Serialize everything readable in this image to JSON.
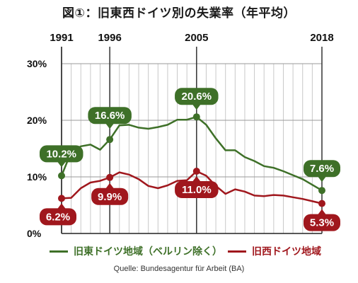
{
  "title": "図①：旧東西ドイツ別の失業率（年平均）",
  "source": "Quelle: Bundesagentur für Arbeit (BA)",
  "chart_data": {
    "type": "line",
    "x": [
      1991,
      1992,
      1993,
      1994,
      1995,
      1996,
      1997,
      1998,
      1999,
      2000,
      2001,
      2002,
      2003,
      2004,
      2005,
      2006,
      2007,
      2008,
      2009,
      2010,
      2011,
      2012,
      2013,
      2014,
      2015,
      2016,
      2017,
      2018
    ],
    "xticks": [
      "1991",
      "1996",
      "2005",
      "2018"
    ],
    "yticks": [
      "0%",
      "10%",
      "20%",
      "30%"
    ],
    "ylim": [
      0,
      30
    ],
    "grid": true,
    "legend_position": "bottom",
    "series": [
      {
        "name": "旧東ドイツ地域（ベルリン除く）",
        "color": "#3e7028",
        "values": [
          10.2,
          14.4,
          15.4,
          15.7,
          14.8,
          16.6,
          19.1,
          19.2,
          18.7,
          18.5,
          18.8,
          19.2,
          20.1,
          20.1,
          20.6,
          19.2,
          16.8,
          14.7,
          14.7,
          13.5,
          12.8,
          11.9,
          11.6,
          11.0,
          10.3,
          9.6,
          8.6,
          7.6
        ]
      },
      {
        "name": "旧西ドイツ地域",
        "color": "#a0171d",
        "values": [
          6.2,
          6.3,
          8.0,
          9.0,
          9.3,
          9.9,
          10.8,
          10.4,
          9.6,
          8.4,
          8.0,
          8.5,
          9.3,
          9.4,
          11.0,
          10.2,
          8.4,
          7.0,
          7.8,
          7.4,
          6.7,
          6.6,
          6.8,
          6.7,
          6.4,
          6.1,
          5.7,
          5.3
        ]
      }
    ],
    "annotations": [
      {
        "series": 0,
        "x": 1991,
        "label": "10.2%"
      },
      {
        "series": 0,
        "x": 1996,
        "label": "16.6%"
      },
      {
        "series": 0,
        "x": 2005,
        "label": "20.6%"
      },
      {
        "series": 0,
        "x": 2018,
        "label": "7.6%"
      },
      {
        "series": 1,
        "x": 1991,
        "label": "6.2%"
      },
      {
        "series": 1,
        "x": 1996,
        "label": "9.9%"
      },
      {
        "series": 1,
        "x": 2005,
        "label": "11.0%"
      },
      {
        "series": 1,
        "x": 2018,
        "label": "5.3%"
      }
    ]
  }
}
